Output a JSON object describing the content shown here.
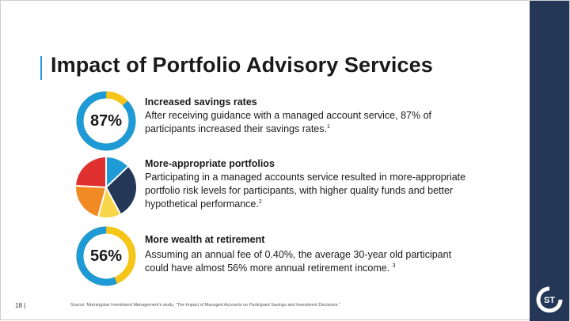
{
  "slide": {
    "title": "Impact of Portfolio Advisory Services",
    "page_number": "18 |",
    "source": "Source: Morningstar Investment Management's study, \"The Impact of Managed Accounts on Participant Savings and Investment Decisions.\"",
    "logo_text": "ST"
  },
  "items": [
    {
      "value": "87%",
      "percent": 87,
      "heading": "Increased savings rates",
      "body": "After receiving guidance with a managed account service, 87% of participants increased their savings rates.",
      "footnote": "1"
    },
    {
      "heading": "More-appropriate portfolios",
      "body": "Participating in a managed accounts service resulted in more-appropriate portfolio risk levels for participants, with higher quality funds and better hypothetical performance.",
      "footnote": "2"
    },
    {
      "value": "56%",
      "percent": 56,
      "heading": "More wealth at retirement",
      "body": "Assuming an annual fee of 0.40%, the average 30-year old participant could have almost 56% more annual retirement income. ",
      "footnote": "3"
    }
  ],
  "colors": {
    "navy": "#243757",
    "blue": "#1e9ad6",
    "yellow": "#f5c518",
    "red": "#e03030",
    "orange": "#f28a24",
    "light_yellow": "#f7d64a"
  }
}
